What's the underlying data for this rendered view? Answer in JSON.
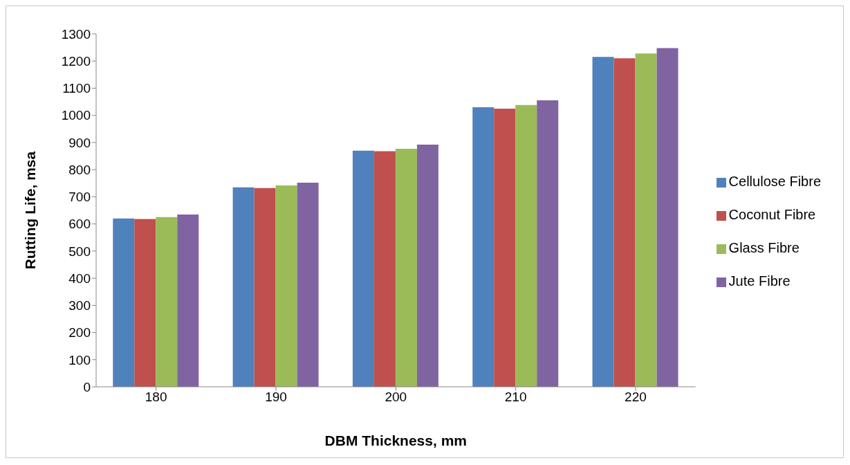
{
  "chart_data": {
    "type": "bar",
    "xlabel": "DBM Thickness, mm",
    "ylabel": "Rutting Life, msa",
    "categories": [
      "180",
      "190",
      "200",
      "210",
      "220"
    ],
    "series": [
      {
        "name": "Cellulose Fibre",
        "color": "#4f81bd",
        "values": [
          620,
          735,
          870,
          1030,
          1215
        ]
      },
      {
        "name": "Coconut Fibre",
        "color": "#c0504d",
        "values": [
          618,
          732,
          868,
          1025,
          1210
        ]
      },
      {
        "name": "Glass Fibre",
        "color": "#9bbb59",
        "values": [
          625,
          742,
          877,
          1038,
          1228
        ]
      },
      {
        "name": "Jute Fibre",
        "color": "#8064a2",
        "values": [
          635,
          752,
          892,
          1055,
          1248
        ]
      }
    ],
    "ylim": [
      0,
      1300
    ],
    "yticks": [
      0,
      100,
      200,
      300,
      400,
      500,
      600,
      700,
      800,
      900,
      1000,
      1100,
      1200,
      1300
    ],
    "grid": false,
    "legend": "right"
  }
}
